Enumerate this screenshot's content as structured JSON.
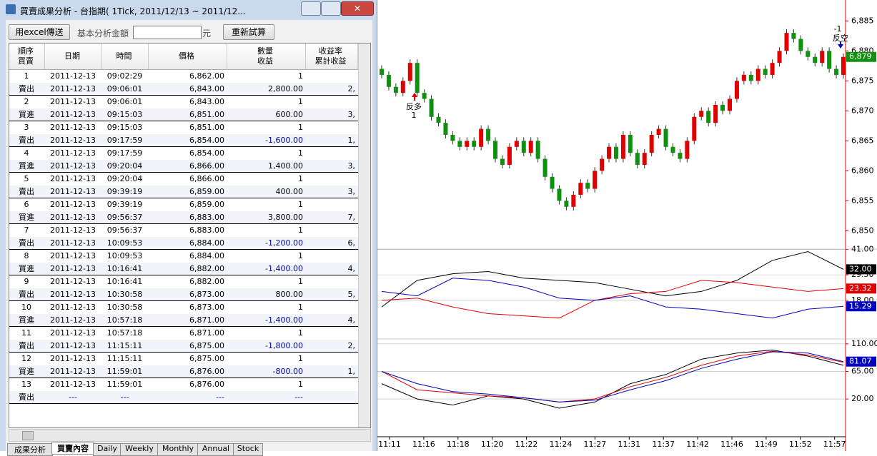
{
  "window": {
    "title": "買賣成果分析 - 台指期( 1Tick, 2011/12/13 ~ 2011/12..."
  },
  "toolbar": {
    "export_button": "用excel傳送",
    "amount_label": "基本分析金額",
    "unit": "元",
    "recalc_button": "重新試算"
  },
  "table": {
    "headers": [
      [
        "順序",
        "買賣"
      ],
      [
        "日期"
      ],
      [
        "時間"
      ],
      [
        "價格"
      ],
      [
        "數量",
        "收益"
      ],
      [
        "收益率",
        "累計收益"
      ]
    ],
    "trades": [
      {
        "no": "1",
        "entry_date": "2011-12-13",
        "entry_time": "09:02:29",
        "entry_price": "6,862.00",
        "qty": "1",
        "action": "賣出",
        "exit_date": "2011-12-13",
        "exit_time": "09:06:01",
        "exit_price": "6,843.00",
        "profit": "2,800.00",
        "cumulative": "2,"
      },
      {
        "no": "2",
        "entry_date": "2011-12-13",
        "entry_time": "09:06:01",
        "entry_price": "6,843.00",
        "qty": "1",
        "action": "買進",
        "exit_date": "2011-12-13",
        "exit_time": "09:15:03",
        "exit_price": "6,851.00",
        "profit": "600.00",
        "cumulative": "3,"
      },
      {
        "no": "3",
        "entry_date": "2011-12-13",
        "entry_time": "09:15:03",
        "entry_price": "6,851.00",
        "qty": "1",
        "action": "賣出",
        "exit_date": "2011-12-13",
        "exit_time": "09:17:59",
        "exit_price": "6,854.00",
        "profit": "-1,600.00",
        "cumulative": "1,"
      },
      {
        "no": "4",
        "entry_date": "2011-12-13",
        "entry_time": "09:17:59",
        "entry_price": "6,854.00",
        "qty": "1",
        "action": "買進",
        "exit_date": "2011-12-13",
        "exit_time": "09:20:04",
        "exit_price": "6,866.00",
        "profit": "1,400.00",
        "cumulative": "3,"
      },
      {
        "no": "5",
        "entry_date": "2011-12-13",
        "entry_time": "09:20:04",
        "entry_price": "6,866.00",
        "qty": "1",
        "action": "賣出",
        "exit_date": "2011-12-13",
        "exit_time": "09:39:19",
        "exit_price": "6,859.00",
        "profit": "400.00",
        "cumulative": "3,"
      },
      {
        "no": "6",
        "entry_date": "2011-12-13",
        "entry_time": "09:39:19",
        "entry_price": "6,859.00",
        "qty": "1",
        "action": "買進",
        "exit_date": "2011-12-13",
        "exit_time": "09:56:37",
        "exit_price": "6,883.00",
        "profit": "3,800.00",
        "cumulative": "7,"
      },
      {
        "no": "7",
        "entry_date": "2011-12-13",
        "entry_time": "09:56:37",
        "entry_price": "6,883.00",
        "qty": "1",
        "action": "賣出",
        "exit_date": "2011-12-13",
        "exit_time": "10:09:53",
        "exit_price": "6,884.00",
        "profit": "-1,200.00",
        "cumulative": "6,"
      },
      {
        "no": "8",
        "entry_date": "2011-12-13",
        "entry_time": "10:09:53",
        "entry_price": "6,884.00",
        "qty": "1",
        "action": "買進",
        "exit_date": "2011-12-13",
        "exit_time": "10:16:41",
        "exit_price": "6,882.00",
        "profit": "-1,400.00",
        "cumulative": "4,"
      },
      {
        "no": "9",
        "entry_date": "2011-12-13",
        "entry_time": "10:16:41",
        "entry_price": "6,882.00",
        "qty": "1",
        "action": "賣出",
        "exit_date": "2011-12-13",
        "exit_time": "10:30:58",
        "exit_price": "6,873.00",
        "profit": "800.00",
        "cumulative": "5,"
      },
      {
        "no": "10",
        "entry_date": "2011-12-13",
        "entry_time": "10:30:58",
        "entry_price": "6,873.00",
        "qty": "1",
        "action": "買進",
        "exit_date": "2011-12-13",
        "exit_time": "10:57:18",
        "exit_price": "6,871.00",
        "profit": "-1,400.00",
        "cumulative": "4,"
      },
      {
        "no": "11",
        "entry_date": "2011-12-13",
        "entry_time": "10:57:18",
        "entry_price": "6,871.00",
        "qty": "1",
        "action": "賣出",
        "exit_date": "2011-12-13",
        "exit_time": "11:15:11",
        "exit_price": "6,875.00",
        "profit": "-1,800.00",
        "cumulative": "2,"
      },
      {
        "no": "12",
        "entry_date": "2011-12-13",
        "entry_time": "11:15:11",
        "entry_price": "6,875.00",
        "qty": "1",
        "action": "買進",
        "exit_date": "2011-12-13",
        "exit_time": "11:59:01",
        "exit_price": "6,876.00",
        "profit": "-800.00",
        "cumulative": "1,"
      },
      {
        "no": "13",
        "entry_date": "2011-12-13",
        "entry_time": "11:59:01",
        "entry_price": "6,876.00",
        "qty": "1",
        "action": "賣出",
        "exit_date": "---",
        "exit_time": "---",
        "exit_price": "---",
        "profit": "---"
      }
    ]
  },
  "tabs": [
    "成果分析",
    "買賣內容",
    "Daily",
    "Weekly",
    "Monthly",
    "Annual",
    "Stock"
  ],
  "annotations": [
    "反多",
    "1",
    "-1",
    "反空"
  ],
  "chart_data": [
    {
      "type": "candlestick",
      "up_color": "#e00000",
      "down_color": "#109010",
      "open": 6877,
      "close": [
        6876,
        6874,
        6873,
        6875,
        6878,
        6873,
        6872,
        6869,
        6868,
        6866,
        6865,
        6864,
        6865,
        6864,
        6867,
        6865,
        6862,
        6861,
        6864,
        6865,
        6863,
        6865,
        6862,
        6859,
        6857,
        6855,
        6854,
        6856,
        6858,
        6857,
        6860,
        6862,
        6864,
        6862,
        6866,
        6863,
        6861,
        6863,
        6866,
        6867,
        6864,
        6863,
        6862,
        6865,
        6869,
        6870,
        6868,
        6871,
        6870,
        6872,
        6875,
        6876,
        6875,
        6877,
        6876,
        6878,
        6880,
        6883,
        6882,
        6880,
        6879,
        6878,
        6880,
        6877,
        6876,
        6879
      ],
      "x_labels": [
        "11:11",
        "11:16",
        "11:18",
        "11:20",
        "11:22",
        "11:24",
        "11:27",
        "11:31",
        "11:37",
        "11:42",
        "11:46",
        "11:49",
        "11:52",
        "11:57"
      ],
      "ylim": [
        6848.5,
        6887.3
      ],
      "yticks": [
        {
          "value": 6850,
          "label": "6,850"
        },
        {
          "value": 6855,
          "label": "6,855"
        },
        {
          "value": 6860,
          "label": "6,860"
        },
        {
          "value": 6865,
          "label": "6,865"
        },
        {
          "value": 6870,
          "label": "6,870"
        },
        {
          "value": 6875,
          "label": "6,875"
        },
        {
          "value": 6880,
          "label": "6,880"
        },
        {
          "value": 6885,
          "label": "6,885"
        }
      ],
      "last": {
        "value": 6879,
        "label": "6,879"
      }
    },
    {
      "type": "line",
      "ylim": [
        7,
        45
      ],
      "yticks": [
        {
          "value": 18,
          "label": "18.00"
        },
        {
          "value": 29.5,
          "label": "29.50"
        },
        {
          "value": 41,
          "label": "41.00"
        }
      ],
      "series": [
        {
          "color": "#000000",
          "values": [
            15,
            27,
            30,
            31,
            28,
            27,
            26,
            23,
            20,
            22,
            27,
            36,
            40,
            32
          ],
          "last_label": "32.00"
        },
        {
          "color": "#e00000",
          "values": [
            18,
            19,
            15,
            12,
            11,
            10,
            18,
            21,
            22,
            27,
            26,
            24,
            22,
            23.32
          ],
          "last_label": "23.32"
        },
        {
          "color": "#0000c0",
          "values": [
            22,
            20,
            28,
            27,
            24,
            19,
            18,
            20,
            15,
            14,
            12,
            10,
            14,
            15.29
          ],
          "last_label": "15.29"
        }
      ]
    },
    {
      "type": "line",
      "ylim": [
        -37,
        132
      ],
      "yticks": [
        {
          "value": 20,
          "label": "20.00"
        },
        {
          "value": 65,
          "label": "65.00"
        },
        {
          "value": 110,
          "label": "110.00"
        }
      ],
      "series": [
        {
          "color": "#000000",
          "values": [
            45,
            20,
            10,
            25,
            20,
            5,
            15,
            45,
            60,
            85,
            95,
            100,
            90,
            75
          ]
        },
        {
          "color": "#e00000",
          "values": [
            65,
            35,
            30,
            25,
            22,
            15,
            20,
            40,
            55,
            75,
            90,
            98,
            92,
            80
          ]
        },
        {
          "color": "#0000c0",
          "values": [
            65,
            45,
            32,
            28,
            22,
            15,
            18,
            35,
            50,
            70,
            85,
            97,
            95,
            81.07
          ],
          "last_label": "81.07"
        }
      ]
    }
  ]
}
